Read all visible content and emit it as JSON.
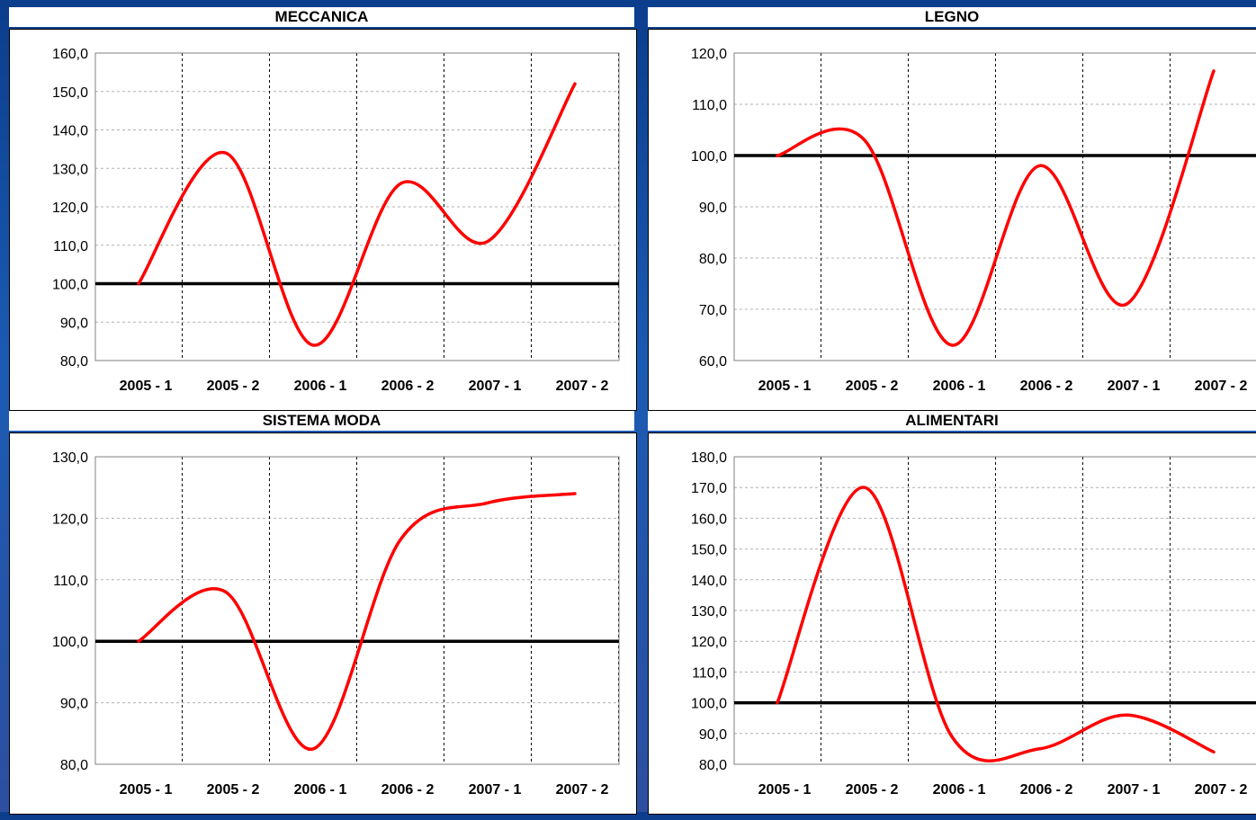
{
  "colors": {
    "background": "#1c5bb3",
    "panel": "#ffffff",
    "series": "#ff0000",
    "baseline": "#000000",
    "grid": "#b0b0b0"
  },
  "chart_data": [
    {
      "type": "line",
      "title": "MECCANICA",
      "categories": [
        "2005 - 1",
        "2005 - 2",
        "2006 - 1",
        "2006 - 2",
        "2007 - 1",
        "2007 - 2"
      ],
      "x": [
        0,
        1,
        2,
        3,
        4,
        5
      ],
      "ylim": [
        80,
        160
      ],
      "yticks": [
        80,
        90,
        100,
        110,
        120,
        130,
        140,
        150,
        160
      ],
      "ytick_labels": [
        "80,0",
        "90,0",
        "100,0",
        "110,0",
        "120,0",
        "130,0",
        "140,0",
        "150,0",
        "160,0"
      ],
      "baseline": 100,
      "series": [
        {
          "values": [
            100.0,
            134.0,
            84.0,
            126.0,
            111.0,
            152.0
          ]
        }
      ],
      "grid": true
    },
    {
      "type": "line",
      "title": "LEGNO",
      "categories": [
        "2005 - 1",
        "2005 - 2",
        "2006 - 1",
        "2006 - 2",
        "2007 - 1",
        "2007 - 2"
      ],
      "x": [
        0,
        1,
        2,
        3,
        4,
        5
      ],
      "ylim": [
        60,
        120
      ],
      "yticks": [
        60,
        70,
        80,
        90,
        100,
        110,
        120
      ],
      "ytick_labels": [
        "60,0",
        "70,0",
        "80,0",
        "90,0",
        "100,0",
        "110,0",
        "120,0"
      ],
      "baseline": 100,
      "series": [
        {
          "values": [
            100.0,
            103.0,
            63.0,
            98.0,
            71.0,
            116.5
          ]
        }
      ],
      "grid": true
    },
    {
      "type": "line",
      "title": "SISTEMA MODA",
      "categories": [
        "2005 - 1",
        "2005 - 2",
        "2006 - 1",
        "2006 - 2",
        "2007 - 1",
        "2007 - 2"
      ],
      "x": [
        0,
        1,
        2,
        3,
        4,
        5
      ],
      "ylim": [
        80,
        130
      ],
      "yticks": [
        80,
        90,
        100,
        110,
        120,
        130
      ],
      "ytick_labels": [
        "80,0",
        "90,0",
        "100,0",
        "110,0",
        "120,0",
        "130,0"
      ],
      "baseline": 100,
      "series": [
        {
          "values": [
            100.0,
            108.0,
            82.5,
            116.5,
            122.5,
            124.0
          ]
        }
      ],
      "grid": true
    },
    {
      "type": "line",
      "title": "ALIMENTARI",
      "categories": [
        "2005 - 1",
        "2005 - 2",
        "2006 - 1",
        "2006 - 2",
        "2007 - 1",
        "2007 - 2"
      ],
      "x": [
        0,
        1,
        2,
        3,
        4,
        5
      ],
      "ylim": [
        80,
        180
      ],
      "yticks": [
        80,
        90,
        100,
        110,
        120,
        130,
        140,
        150,
        160,
        170,
        180
      ],
      "ytick_labels": [
        "80,0",
        "90,0",
        "100,0",
        "110,0",
        "120,0",
        "130,0",
        "140,0",
        "150,0",
        "160,0",
        "170,0",
        "180,0"
      ],
      "baseline": 100,
      "series": [
        {
          "values": [
            100.0,
            170.0,
            89.0,
            85.0,
            96.0,
            84.0
          ]
        }
      ],
      "grid": true
    }
  ]
}
